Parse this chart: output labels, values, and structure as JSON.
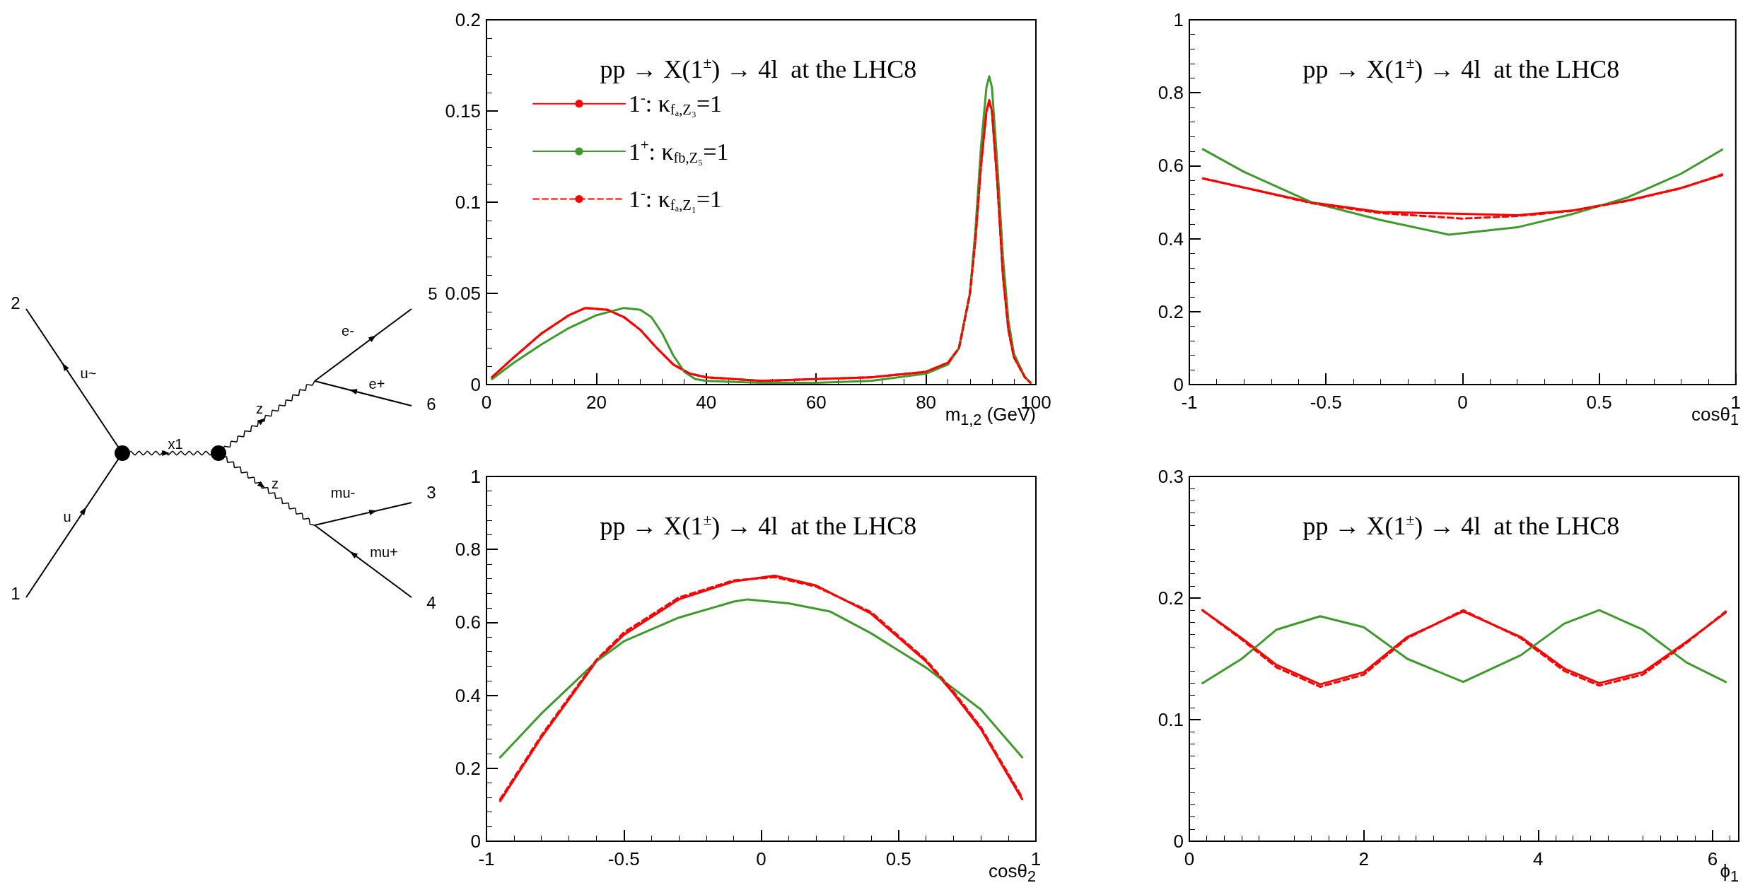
{
  "chart_data": [
    {
      "type": "other",
      "annotations": [
        "2",
        "5",
        "u~",
        "e-",
        "e+",
        "6",
        "x1",
        "z",
        "z",
        "mu-",
        "3",
        "u",
        "mu+",
        "1",
        "4"
      ]
    },
    {
      "type": "line",
      "title": "pp → X(1$^{±}$) → 4l  at the LHC8",
      "xlabel": "m$_{1,2}$ (GeV)",
      "xlim": [
        0,
        100
      ],
      "xticks": [
        0,
        20,
        40,
        60,
        80,
        100
      ],
      "ylim": [
        0,
        0.2
      ],
      "yticks": [
        0,
        0.05,
        0.1,
        0.15,
        0.2
      ],
      "legend": "top left",
      "series": [
        {
          "name": "1$^{-}$: κ$_{fₐ,Z₃}$=1",
          "color": "#ff0000",
          "line_style": "solid",
          "x": [
            1,
            5,
            10,
            15,
            18,
            22,
            25,
            28,
            31,
            34,
            37,
            40,
            50,
            60,
            70,
            80,
            84,
            86,
            88,
            89,
            90,
            91,
            91.5,
            92,
            93,
            94,
            95,
            96,
            98,
            99
          ],
          "values": [
            0.004,
            0.015,
            0.028,
            0.038,
            0.042,
            0.041,
            0.037,
            0.03,
            0.02,
            0.011,
            0.006,
            0.004,
            0.002,
            0.003,
            0.004,
            0.007,
            0.012,
            0.02,
            0.05,
            0.08,
            0.12,
            0.15,
            0.156,
            0.15,
            0.11,
            0.06,
            0.03,
            0.015,
            0.004,
            0.001
          ]
        },
        {
          "name": "1$^{+}$: κ$_{fb,Z₅}$=1",
          "color": "#3f9a2c",
          "line_style": "solid",
          "x": [
            1,
            5,
            10,
            15,
            20,
            25,
            28,
            30,
            32,
            34,
            36,
            38,
            40,
            50,
            60,
            70,
            80,
            84,
            86,
            88,
            89,
            90,
            91,
            91.5,
            92,
            93,
            94,
            95,
            96,
            98,
            99
          ],
          "values": [
            0.003,
            0.012,
            0.022,
            0.031,
            0.038,
            0.042,
            0.041,
            0.037,
            0.028,
            0.016,
            0.007,
            0.003,
            0.002,
            0.001,
            0.001,
            0.002,
            0.006,
            0.011,
            0.02,
            0.05,
            0.085,
            0.13,
            0.163,
            0.169,
            0.163,
            0.12,
            0.07,
            0.035,
            0.017,
            0.004,
            0.001
          ]
        },
        {
          "name": "1$^{-}$: κ$_{fₐ,Z₁}$=1",
          "color": "#ff0000",
          "line_style": "dashed",
          "x": [
            1,
            5,
            10,
            15,
            18,
            22,
            25,
            28,
            31,
            34,
            37,
            40,
            50,
            60,
            70,
            80,
            84,
            86,
            88,
            89,
            90,
            91,
            91.5,
            92,
            93,
            94,
            95,
            96,
            98,
            99
          ],
          "values": [
            0.004,
            0.015,
            0.028,
            0.038,
            0.042,
            0.041,
            0.037,
            0.03,
            0.02,
            0.011,
            0.006,
            0.004,
            0.002,
            0.003,
            0.004,
            0.007,
            0.012,
            0.02,
            0.05,
            0.08,
            0.12,
            0.15,
            0.155,
            0.15,
            0.11,
            0.06,
            0.03,
            0.015,
            0.004,
            0.001
          ]
        }
      ]
    },
    {
      "type": "line",
      "title": "pp → X(1$^{±}$) → 4l  at the LHC8",
      "xlabel": "cosθ$_{1}$",
      "xlim": [
        -1,
        1
      ],
      "xticks": [
        -1,
        -0.5,
        0,
        0.5,
        1
      ],
      "ylim": [
        0,
        1
      ],
      "yticks": [
        0,
        0.2,
        0.4,
        0.6,
        0.8,
        1
      ],
      "series": [
        {
          "color": "#ff0000",
          "line_style": "solid",
          "x": [
            -0.95,
            -0.8,
            -0.55,
            -0.3,
            0,
            0.2,
            0.4,
            0.6,
            0.8,
            0.95
          ],
          "values": [
            0.565,
            0.54,
            0.499,
            0.473,
            0.468,
            0.464,
            0.477,
            0.504,
            0.539,
            0.574
          ]
        },
        {
          "color": "#3f9a2c",
          "line_style": "solid",
          "x": [
            -0.95,
            -0.8,
            -0.55,
            -0.3,
            -0.05,
            0.2,
            0.4,
            0.6,
            0.8,
            0.95
          ],
          "values": [
            0.645,
            0.583,
            0.499,
            0.451,
            0.411,
            0.431,
            0.467,
            0.512,
            0.578,
            0.644
          ]
        },
        {
          "color": "#ff0000",
          "line_style": "dashed",
          "x": [
            -0.95,
            -0.8,
            -0.55,
            -0.3,
            0,
            0.2,
            0.4,
            0.6,
            0.8,
            0.95
          ],
          "values": [
            0.565,
            0.54,
            0.497,
            0.47,
            0.455,
            0.462,
            0.476,
            0.503,
            0.538,
            0.576
          ]
        }
      ]
    },
    {
      "type": "line",
      "title": "pp → X(1$^{±}$) → 4l  at the LHC8",
      "xlabel": "cosθ$_{2}$",
      "xlim": [
        -1,
        1
      ],
      "xticks": [
        -1,
        -0.5,
        0,
        0.5,
        1
      ],
      "ylim": [
        0,
        1
      ],
      "yticks": [
        0,
        0.2,
        0.4,
        0.6,
        0.8,
        1
      ],
      "series": [
        {
          "color": "#ff0000",
          "line_style": "solid",
          "x": [
            -0.95,
            -0.8,
            -0.6,
            -0.5,
            -0.3,
            -0.1,
            0.05,
            0.2,
            0.4,
            0.6,
            0.7,
            0.8,
            0.95
          ],
          "values": [
            0.11,
            0.285,
            0.493,
            0.566,
            0.663,
            0.712,
            0.728,
            0.701,
            0.624,
            0.493,
            0.405,
            0.307,
            0.115
          ]
        },
        {
          "color": "#3f9a2c",
          "line_style": "solid",
          "x": [
            -0.95,
            -0.8,
            -0.6,
            -0.5,
            -0.3,
            -0.1,
            -0.05,
            0.1,
            0.25,
            0.4,
            0.6,
            0.8,
            0.95
          ],
          "values": [
            0.23,
            0.35,
            0.493,
            0.548,
            0.613,
            0.657,
            0.663,
            0.652,
            0.63,
            0.57,
            0.476,
            0.361,
            0.23
          ]
        },
        {
          "color": "#ff0000",
          "line_style": "dashed",
          "x": [
            -0.95,
            -0.8,
            -0.6,
            -0.5,
            -0.3,
            -0.1,
            0.05,
            0.2,
            0.4,
            0.6,
            0.7,
            0.8,
            0.95
          ],
          "values": [
            0.115,
            0.29,
            0.497,
            0.572,
            0.668,
            0.715,
            0.724,
            0.698,
            0.628,
            0.497,
            0.41,
            0.312,
            0.12
          ]
        }
      ]
    },
    {
      "type": "line",
      "title": "pp → X(1$^{±}$) → 4l  at the LHC8",
      "xlabel": "ϕ$_{1}$",
      "xlim": [
        0,
        6.3
      ],
      "xticks": [
        0,
        2,
        4,
        6
      ],
      "ylim": [
        0,
        0.3
      ],
      "yticks": [
        0,
        0.1,
        0.2,
        0.3
      ],
      "series": [
        {
          "color": "#ff0000",
          "line_style": "solid",
          "x": [
            0.15,
            0.6,
            1,
            1.5,
            2,
            2.5,
            3.14,
            3.8,
            4.3,
            4.7,
            5.2,
            5.7,
            6.15
          ],
          "values": [
            0.19,
            0.167,
            0.145,
            0.129,
            0.139,
            0.168,
            0.189,
            0.168,
            0.142,
            0.13,
            0.139,
            0.164,
            0.188
          ]
        },
        {
          "color": "#3f9a2c",
          "line_style": "solid",
          "x": [
            0.15,
            0.6,
            1,
            1.5,
            2,
            2.5,
            3.14,
            3.8,
            4.3,
            4.7,
            5.2,
            5.7,
            6.15
          ],
          "values": [
            0.13,
            0.15,
            0.174,
            0.185,
            0.176,
            0.15,
            0.131,
            0.153,
            0.179,
            0.19,
            0.174,
            0.147,
            0.131
          ]
        },
        {
          "color": "#ff0000",
          "line_style": "dashed",
          "x": [
            0.15,
            0.6,
            1,
            1.5,
            2,
            2.5,
            3.14,
            3.8,
            4.3,
            4.7,
            5.2,
            5.7,
            6.15
          ],
          "values": [
            0.19,
            0.166,
            0.143,
            0.127,
            0.137,
            0.167,
            0.19,
            0.167,
            0.14,
            0.128,
            0.137,
            0.163,
            0.189
          ]
        }
      ]
    }
  ]
}
